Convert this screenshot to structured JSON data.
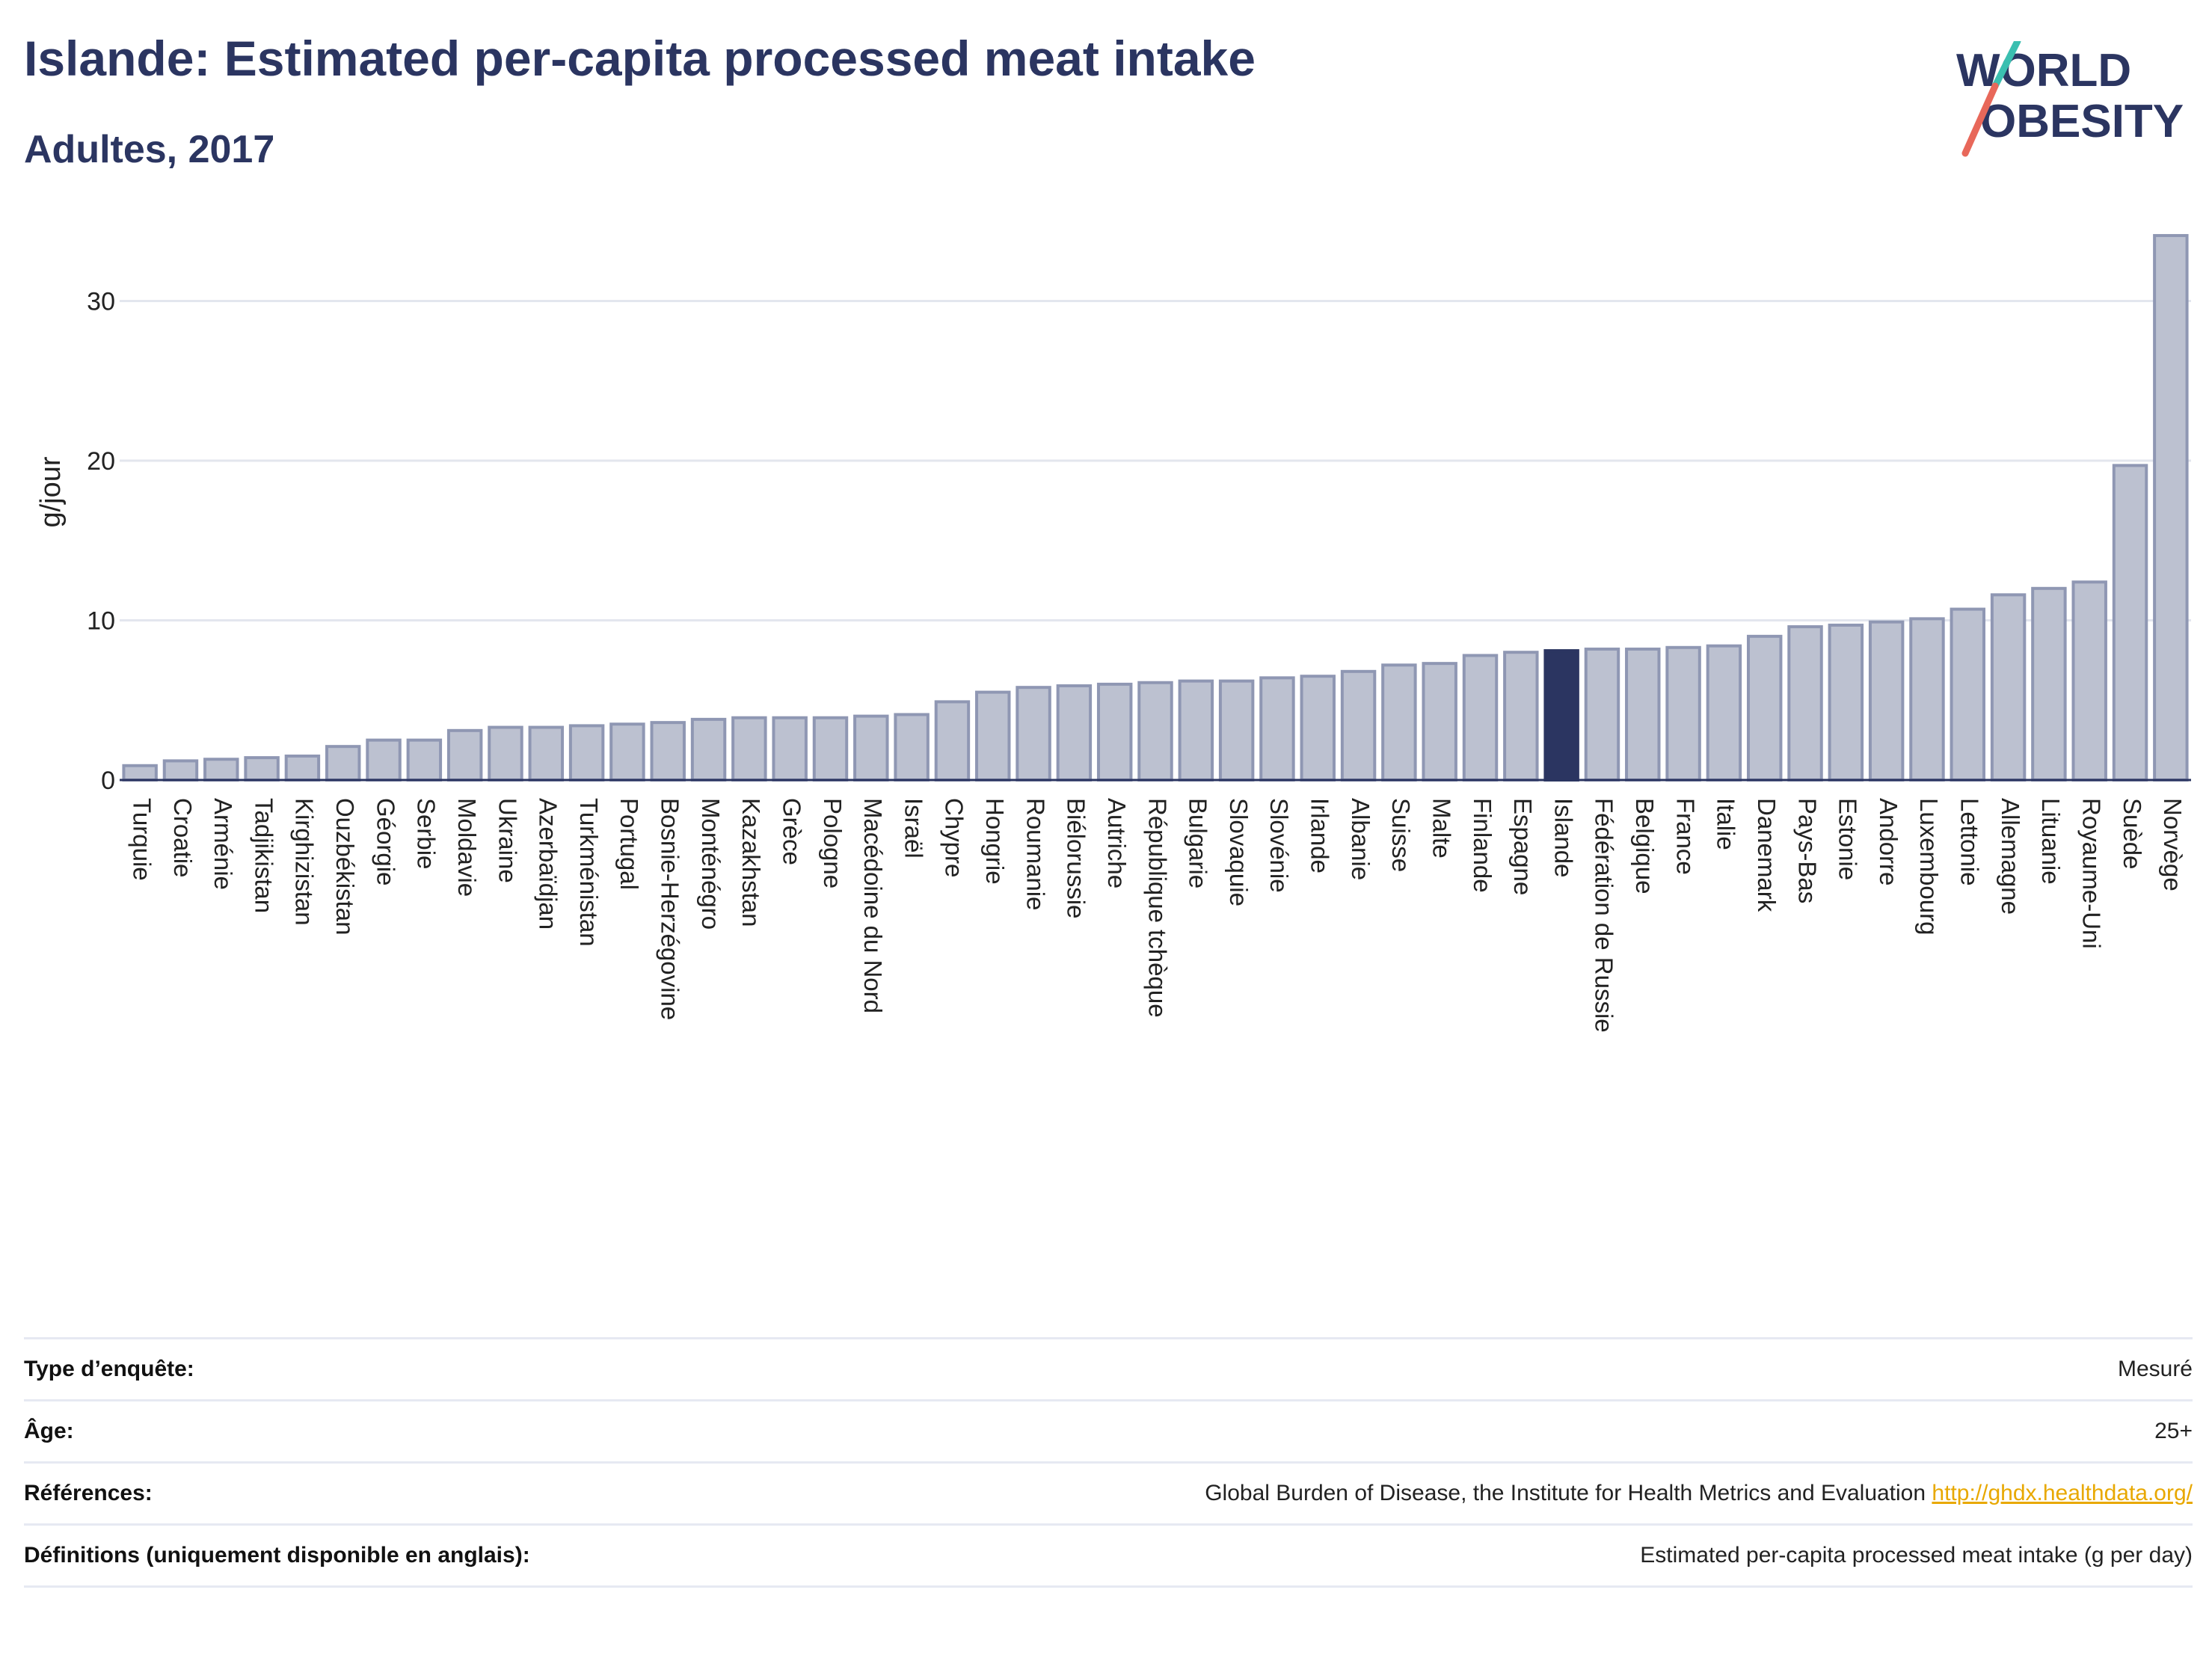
{
  "header": {
    "title": "Islande: Estimated per-capita processed meat intake",
    "subtitle": "Adultes, 2017"
  },
  "logo": {
    "line1": "WORLD",
    "line2": "OBESITY"
  },
  "colors": {
    "bar": "#bcc1d0",
    "bar_stroke": "#8f97b3",
    "highlight": "#2b3561",
    "title": "#2b3561",
    "grid": "#e3e6ee",
    "link": "#e8a800"
  },
  "chart_data": {
    "type": "bar",
    "title": "Islande: Estimated per-capita processed meat intake",
    "subtitle": "Adultes, 2017",
    "ylabel": "g/jour",
    "xlabel": "",
    "ylim": [
      0,
      35
    ],
    "yticks": [
      0,
      10,
      20,
      30
    ],
    "grid": true,
    "highlight": "Islande",
    "categories": [
      "Turquie",
      "Croatie",
      "Arménie",
      "Tadjikistan",
      "Kirghizistan",
      "Ouzbékistan",
      "Géorgie",
      "Serbie",
      "Moldavie",
      "Ukraine",
      "Azerbaïdjan",
      "Turkménistan",
      "Portugal",
      "Bosnie-Herzégovine",
      "Monténégro",
      "Kazakhstan",
      "Grèce",
      "Pologne",
      "Macédoine du Nord",
      "Israël",
      "Chypre",
      "Hongrie",
      "Roumanie",
      "Biélorussie",
      "Autriche",
      "République tchèque",
      "Bulgarie",
      "Slovaquie",
      "Slovénie",
      "Irlande",
      "Albanie",
      "Suisse",
      "Malte",
      "Finlande",
      "Espagne",
      "Islande",
      "Fédération de Russie",
      "Belgique",
      "France",
      "Italie",
      "Danemark",
      "Pays-Bas",
      "Estonie",
      "Andorre",
      "Luxembourg",
      "Lettonie",
      "Allemagne",
      "Lituanie",
      "Royaume-Uni",
      "Suède",
      "Norvège"
    ],
    "values": [
      0.9,
      1.2,
      1.3,
      1.4,
      1.5,
      2.1,
      2.5,
      2.5,
      3.1,
      3.3,
      3.3,
      3.4,
      3.5,
      3.6,
      3.8,
      3.9,
      3.9,
      3.9,
      4.0,
      4.1,
      4.9,
      5.5,
      5.8,
      5.9,
      6.0,
      6.1,
      6.2,
      6.2,
      6.4,
      6.5,
      6.8,
      7.2,
      7.3,
      7.8,
      8.0,
      8.1,
      8.2,
      8.2,
      8.3,
      8.4,
      9.0,
      9.6,
      9.7,
      9.9,
      10.1,
      10.7,
      11.6,
      12.0,
      12.4,
      19.7,
      34.1
    ]
  },
  "info": {
    "rows": [
      {
        "key": "Type d’enquête:",
        "value": "Mesuré",
        "link": ""
      },
      {
        "key": "Âge:",
        "value": "25+",
        "link": ""
      },
      {
        "key": "Références:",
        "value": "Global Burden of Disease, the Institute for Health Metrics and Evaluation",
        "link": "http://ghdx.healthdata.org/"
      },
      {
        "key": "Définitions (uniquement disponible en anglais):",
        "value": "Estimated per-capita processed meat intake (g per day)",
        "link": ""
      }
    ]
  }
}
